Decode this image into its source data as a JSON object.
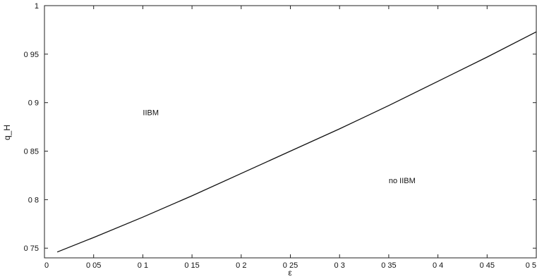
{
  "chart_data": {
    "type": "line",
    "title": "",
    "xlabel": "ε",
    "ylabel": "q_H",
    "xlim": [
      0,
      0.5
    ],
    "ylim": [
      0.74,
      1.0
    ],
    "x_ticks": [
      0,
      0.05,
      0.1,
      0.15,
      0.2,
      0.25,
      0.3,
      0.35,
      0.4,
      0.45,
      0.5
    ],
    "x_tick_labels": [
      "0",
      "0 05",
      "0 1",
      "0 15",
      "0 2",
      "0 25",
      "0 3",
      "0 35",
      "0 4",
      "0 45",
      "0 5"
    ],
    "y_ticks": [
      0.75,
      0.8,
      0.85,
      0.9,
      0.95,
      1.0
    ],
    "y_tick_labels": [
      "0 75",
      "0 8",
      "0 85",
      "0 9",
      "0 95",
      "1"
    ],
    "grid": false,
    "series": [
      {
        "x": [
          0.013,
          0.05,
          0.1,
          0.15,
          0.2,
          0.25,
          0.3,
          0.35,
          0.4,
          0.45,
          0.5
        ],
        "y": [
          0.746,
          0.761,
          0.782,
          0.804,
          0.827,
          0.85,
          0.873,
          0.897,
          0.922,
          0.947,
          0.973
        ]
      }
    ],
    "annotations": [
      {
        "text": "IIBM",
        "x": 0.1,
        "y": 0.89
      },
      {
        "text": "no IIBM",
        "x": 0.35,
        "y": 0.82
      }
    ]
  }
}
